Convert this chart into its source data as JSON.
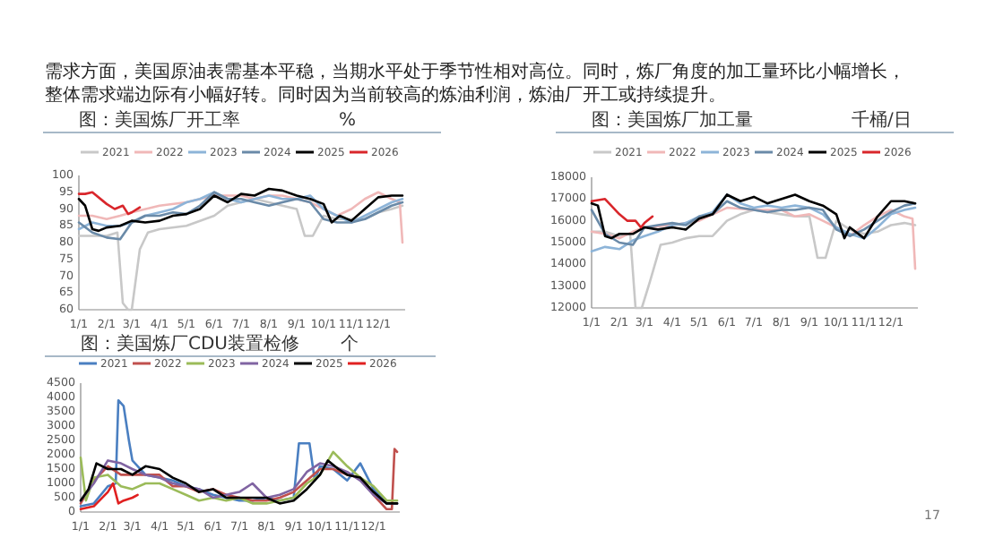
{
  "chart_data": [
    {
      "type": "other",
      "annotations": [
        "需求方面，美国原油表需基本平稳，当期水平处于季节性相对高位。同时，炼厂角度的加工量环比小幅增长，",
        "整体需求端边际有小幅好转。同时因为当前较高的炼油利润，炼油厂开工或持续提升。",
        "17"
      ]
    },
    {
      "type": "line",
      "title": "图：美国炼厂开工率",
      "ylabel": "%",
      "legend": "top",
      "xlim": [
        "--01-01",
        "--12-31"
      ],
      "ylim": [
        60,
        100
      ],
      "yticks": [
        60,
        65,
        70,
        75,
        80,
        85,
        90,
        95,
        100
      ],
      "xticks": [
        {
          "value": "--01-01",
          "label": "1/1"
        },
        {
          "value": "--02-01",
          "label": "2/1"
        },
        {
          "value": "--03-01",
          "label": "3/1"
        },
        {
          "value": "--04-01",
          "label": "4/1"
        },
        {
          "value": "--05-01",
          "label": "5/1"
        },
        {
          "value": "--06-01",
          "label": "6/1"
        },
        {
          "value": "--07-01",
          "label": "7/1"
        },
        {
          "value": "--08-01",
          "label": "8/1"
        },
        {
          "value": "--09-01",
          "label": "9/1"
        },
        {
          "value": "--10-01",
          "label": "10/1"
        },
        {
          "value": "--11-01",
          "label": "11/1"
        },
        {
          "value": "--12-01",
          "label": "12/1"
        }
      ],
      "series": [
        {
          "name": "2021",
          "color": "#c8c8c8",
          "x": [
            "--01-01",
            "--01-16",
            "--02-01",
            "--02-13",
            "--02-19",
            "--02-25",
            "--03-01",
            "--03-10",
            "--03-19",
            "--04-01",
            "--05-01",
            "--06-01",
            "--06-16",
            "--07-01",
            "--07-16",
            "--08-01",
            "--08-16",
            "--09-01",
            "--09-10",
            "--09-19",
            "--10-01",
            "--10-16",
            "--11-01",
            "--11-16",
            "--12-01",
            "--12-16",
            "--12-28"
          ],
          "values": [
            82,
            82,
            82,
            83,
            62,
            60,
            60,
            78,
            83,
            84,
            85,
            88,
            91,
            92,
            93,
            92,
            91,
            90,
            82,
            82,
            88,
            87,
            87,
            87,
            89,
            90,
            91
          ]
        },
        {
          "name": "2022",
          "color": "#f0b8b8",
          "x": [
            "--01-01",
            "--01-16",
            "--02-01",
            "--02-16",
            "--03-01",
            "--04-01",
            "--05-01",
            "--06-01",
            "--07-01",
            "--07-16",
            "--08-01",
            "--08-16",
            "--09-01",
            "--09-16",
            "--10-01",
            "--10-16",
            "--11-01",
            "--11-16",
            "--12-01",
            "--12-16",
            "--12-25",
            "--12-28"
          ],
          "values": [
            88,
            88,
            87,
            88,
            89,
            91,
            92,
            94,
            94,
            93,
            94,
            94,
            93,
            92,
            90,
            88,
            90,
            93,
            95,
            93,
            92,
            80
          ]
        },
        {
          "name": "2023",
          "color": "#8db4d8",
          "x": [
            "--01-01",
            "--01-16",
            "--02-01",
            "--02-16",
            "--03-01",
            "--03-16",
            "--04-01",
            "--04-16",
            "--05-01",
            "--05-16",
            "--06-01",
            "--06-16",
            "--07-01",
            "--07-16",
            "--08-01",
            "--08-16",
            "--09-01",
            "--09-16",
            "--10-01",
            "--10-16",
            "--11-01",
            "--11-16",
            "--12-01",
            "--12-16",
            "--12-28"
          ],
          "values": [
            84,
            86,
            85,
            85,
            86,
            88,
            89,
            90,
            92,
            93,
            95,
            93,
            92,
            93,
            94,
            93,
            93,
            94,
            90,
            88,
            86,
            88,
            90,
            92,
            93
          ]
        },
        {
          "name": "2024",
          "color": "#6a8aa8",
          "x": [
            "--01-01",
            "--01-16",
            "--02-01",
            "--02-16",
            "--03-01",
            "--03-16",
            "--04-01",
            "--04-16",
            "--05-01",
            "--05-16",
            "--06-01",
            "--06-16",
            "--07-01",
            "--07-16",
            "--08-01",
            "--08-16",
            "--09-01",
            "--09-16",
            "--10-01",
            "--10-16",
            "--11-01",
            "--11-16",
            "--12-01",
            "--12-16",
            "--12-28"
          ],
          "values": [
            86,
            83,
            81.5,
            81,
            86,
            88,
            88,
            89,
            88.5,
            91,
            95,
            93,
            93,
            92,
            91,
            92,
            93,
            92,
            87,
            86,
            86,
            87,
            89,
            91,
            92
          ]
        },
        {
          "name": "2025",
          "color": "#000000",
          "x": [
            "--01-01",
            "--01-08",
            "--01-16",
            "--01-23",
            "--02-01",
            "--02-16",
            "--03-01",
            "--03-16",
            "--04-01",
            "--04-16",
            "--05-01",
            "--05-16",
            "--06-01",
            "--06-16",
            "--07-01",
            "--07-16",
            "--08-01",
            "--08-16",
            "--09-01",
            "--09-16",
            "--10-01",
            "--10-10",
            "--10-19",
            "--11-01",
            "--11-16",
            "--12-01",
            "--12-16",
            "--12-28"
          ],
          "values": [
            93,
            91,
            84,
            83.5,
            84.5,
            85,
            86.5,
            86,
            86.5,
            88,
            88.5,
            90,
            94,
            92,
            94.5,
            94,
            96,
            95.5,
            94,
            93,
            91.5,
            86,
            88,
            86.5,
            90,
            93.5,
            94,
            94
          ]
        },
        {
          "name": "2026",
          "color": "#d9262b",
          "x": [
            "--01-01",
            "--01-08",
            "--01-16",
            "--02-01",
            "--02-10",
            "--02-19",
            "--02-25",
            "--03-01",
            "--03-10"
          ],
          "values": [
            94.5,
            94.5,
            95,
            91.5,
            90,
            91,
            88.5,
            89,
            90.5
          ]
        }
      ]
    },
    {
      "type": "line",
      "title": "图：美国炼厂加工量",
      "ylabel": "千桶/日",
      "legend": "top",
      "xlim": [
        "--01-01",
        "--12-31"
      ],
      "ylim": [
        12000,
        18000
      ],
      "yticks": [
        12000,
        13000,
        14000,
        15000,
        16000,
        17000,
        18000
      ],
      "xticks": [
        {
          "value": "--01-01",
          "label": "1/1"
        },
        {
          "value": "--02-01",
          "label": "2/1"
        },
        {
          "value": "--03-01",
          "label": "3/1"
        },
        {
          "value": "--04-01",
          "label": "4/1"
        },
        {
          "value": "--05-01",
          "label": "5/1"
        },
        {
          "value": "--06-01",
          "label": "6/1"
        },
        {
          "value": "--07-01",
          "label": "7/1"
        },
        {
          "value": "--08-01",
          "label": "8/1"
        },
        {
          "value": "--09-01",
          "label": "9/1"
        },
        {
          "value": "--10-01",
          "label": "10/1"
        },
        {
          "value": "--11-01",
          "label": "11/1"
        },
        {
          "value": "--12-01",
          "label": "12/1"
        }
      ],
      "series": [
        {
          "name": "2021",
          "color": "#c8c8c8",
          "x": [
            "--01-01",
            "--01-16",
            "--02-01",
            "--02-13",
            "--02-19",
            "--02-26",
            "--03-07",
            "--03-19",
            "--04-01",
            "--04-16",
            "--05-01",
            "--05-16",
            "--06-01",
            "--06-16",
            "--07-01",
            "--07-16",
            "--08-01",
            "--08-16",
            "--09-01",
            "--09-10",
            "--09-19",
            "--10-01",
            "--10-16",
            "--11-01",
            "--11-16",
            "--12-01",
            "--12-16",
            "--12-28"
          ],
          "values": [
            15500,
            15500,
            15300,
            15400,
            12000,
            12000,
            13200,
            14900,
            15000,
            15200,
            15300,
            15300,
            16000,
            16300,
            16500,
            16400,
            16300,
            16200,
            16200,
            14300,
            14300,
            16000,
            15600,
            15400,
            15500,
            15800,
            15900,
            15800
          ]
        },
        {
          "name": "2022",
          "color": "#f0b8b8",
          "x": [
            "--01-01",
            "--01-16",
            "--02-01",
            "--02-16",
            "--03-01",
            "--04-01",
            "--05-01",
            "--06-01",
            "--07-01",
            "--08-01",
            "--08-16",
            "--09-01",
            "--09-16",
            "--10-01",
            "--10-16",
            "--11-01",
            "--11-16",
            "--12-01",
            "--12-16",
            "--12-25",
            "--12-28"
          ],
          "values": [
            15500,
            15400,
            15200,
            15500,
            15700,
            15800,
            16000,
            16600,
            16500,
            16500,
            16200,
            16300,
            16000,
            15700,
            15300,
            15800,
            16200,
            16500,
            16200,
            16100,
            13800
          ]
        },
        {
          "name": "2023",
          "color": "#8db4d8",
          "x": [
            "--01-01",
            "--01-16",
            "--02-01",
            "--02-16",
            "--03-01",
            "--03-16",
            "--04-01",
            "--04-16",
            "--05-01",
            "--05-16",
            "--06-01",
            "--06-16",
            "--07-01",
            "--07-16",
            "--08-01",
            "--08-16",
            "--09-01",
            "--09-16",
            "--10-01",
            "--10-16",
            "--11-01",
            "--11-16",
            "--12-01",
            "--12-16",
            "--12-28"
          ],
          "values": [
            14600,
            14800,
            14700,
            15100,
            15300,
            15500,
            15800,
            15900,
            16200,
            16400,
            17200,
            16800,
            16600,
            16700,
            16600,
            16700,
            16600,
            16300,
            15700,
            15400,
            15200,
            15700,
            16300,
            16500,
            16600
          ]
        },
        {
          "name": "2024",
          "color": "#6a8aa8",
          "x": [
            "--01-01",
            "--01-16",
            "--02-01",
            "--02-16",
            "--03-01",
            "--03-16",
            "--04-01",
            "--04-16",
            "--05-01",
            "--05-16",
            "--06-01",
            "--06-16",
            "--07-01",
            "--07-16",
            "--08-01",
            "--08-16",
            "--09-01",
            "--09-16",
            "--10-01",
            "--10-16",
            "--11-01",
            "--11-16",
            "--12-01",
            "--12-16",
            "--12-28"
          ],
          "values": [
            16500,
            15400,
            15000,
            14900,
            15700,
            15800,
            15900,
            15800,
            16200,
            16300,
            16900,
            16600,
            16500,
            16400,
            16500,
            16500,
            16600,
            16500,
            15600,
            15300,
            15600,
            16000,
            16400,
            16700,
            16800
          ]
        },
        {
          "name": "2025",
          "color": "#000000",
          "x": [
            "--01-01",
            "--01-08",
            "--01-16",
            "--01-23",
            "--02-01",
            "--02-16",
            "--03-01",
            "--03-16",
            "--04-01",
            "--04-16",
            "--05-01",
            "--05-16",
            "--06-01",
            "--06-16",
            "--07-01",
            "--07-16",
            "--08-01",
            "--08-16",
            "--09-01",
            "--09-16",
            "--10-01",
            "--10-10",
            "--10-16",
            "--11-01",
            "--11-16",
            "--12-01",
            "--12-16",
            "--12-28"
          ],
          "values": [
            16800,
            16700,
            15300,
            15200,
            15400,
            15400,
            15700,
            15600,
            15700,
            15600,
            16100,
            16300,
            17200,
            16900,
            17100,
            16800,
            17000,
            17200,
            16900,
            16700,
            16300,
            15200,
            15700,
            15200,
            16200,
            16900,
            16900,
            16800
          ]
        },
        {
          "name": "2026",
          "color": "#d9262b",
          "x": [
            "--01-01",
            "--01-16",
            "--02-01",
            "--02-10",
            "--02-19",
            "--02-25",
            "--03-01",
            "--03-10"
          ],
          "values": [
            16900,
            17000,
            16300,
            16000,
            16000,
            15700,
            15900,
            16200
          ]
        }
      ]
    },
    {
      "type": "line",
      "title": "图：美国炼厂CDU装置检修",
      "ylabel": "个",
      "legend": "top",
      "xlim": [
        "--01-01",
        "--12-31"
      ],
      "ylim": [
        0,
        4500
      ],
      "yticks": [
        0,
        500,
        1000,
        1500,
        2000,
        2500,
        3000,
        3500,
        4000,
        4500
      ],
      "xticks": [
        {
          "value": "--01-01",
          "label": "1/1"
        },
        {
          "value": "--02-01",
          "label": "2/1"
        },
        {
          "value": "--03-01",
          "label": "3/1"
        },
        {
          "value": "--04-01",
          "label": "4/1"
        },
        {
          "value": "--05-01",
          "label": "5/1"
        },
        {
          "value": "--06-01",
          "label": "6/1"
        },
        {
          "value": "--07-01",
          "label": "7/1"
        },
        {
          "value": "--08-01",
          "label": "8/1"
        },
        {
          "value": "--09-01",
          "label": "9/1"
        },
        {
          "value": "--10-01",
          "label": "10/1"
        },
        {
          "value": "--11-01",
          "label": "11/1"
        },
        {
          "value": "--12-01",
          "label": "12/1"
        }
      ],
      "series": [
        {
          "name": "2021",
          "color": "#4a7fc1",
          "x": [
            "--01-01",
            "--01-16",
            "--02-01",
            "--02-10",
            "--02-13",
            "--02-19",
            "--02-25",
            "--03-01",
            "--03-16",
            "--04-01",
            "--04-16",
            "--05-01",
            "--05-16",
            "--06-01",
            "--06-16",
            "--07-01",
            "--07-16",
            "--08-01",
            "--08-16",
            "--09-01",
            "--09-07",
            "--09-19",
            "--09-25",
            "--10-01",
            "--10-16",
            "--11-01",
            "--11-16",
            "--12-01",
            "--12-16",
            "--12-28"
          ],
          "values": [
            200,
            300,
            900,
            1000,
            3900,
            3700,
            2500,
            1800,
            1300,
            1200,
            1100,
            900,
            800,
            600,
            500,
            400,
            400,
            500,
            400,
            500,
            2400,
            2400,
            1100,
            1600,
            1500,
            1100,
            1700,
            800,
            300,
            300
          ]
        },
        {
          "name": "2022",
          "color": "#c0504d",
          "x": [
            "--01-01",
            "--01-16",
            "--02-01",
            "--02-16",
            "--03-01",
            "--03-16",
            "--04-01",
            "--04-16",
            "--05-01",
            "--05-16",
            "--06-01",
            "--06-16",
            "--07-01",
            "--07-16",
            "--08-01",
            "--08-16",
            "--09-01",
            "--09-16",
            "--10-01",
            "--10-16",
            "--11-01",
            "--11-16",
            "--12-01",
            "--12-16",
            "--12-22",
            "--12-25",
            "--12-28"
          ],
          "values": [
            300,
            1100,
            1600,
            1300,
            1300,
            1300,
            1300,
            900,
            900,
            700,
            800,
            600,
            500,
            400,
            400,
            500,
            700,
            1100,
            1500,
            1500,
            1300,
            1200,
            600,
            100,
            100,
            2200,
            2100
          ]
        },
        {
          "name": "2023",
          "color": "#9bbb59",
          "x": [
            "--01-01",
            "--01-07",
            "--01-16",
            "--02-01",
            "--02-16",
            "--03-01",
            "--03-16",
            "--04-01",
            "--04-16",
            "--05-01",
            "--05-16",
            "--06-01",
            "--06-16",
            "--07-01",
            "--07-16",
            "--08-01",
            "--08-16",
            "--09-01",
            "--09-16",
            "--10-01",
            "--10-16",
            "--11-01",
            "--11-16",
            "--12-01",
            "--12-16",
            "--12-28"
          ],
          "values": [
            1900,
            400,
            1200,
            1300,
            900,
            800,
            1000,
            1000,
            800,
            600,
            400,
            500,
            400,
            500,
            300,
            300,
            400,
            500,
            1000,
            1300,
            2100,
            1600,
            1200,
            900,
            400,
            400
          ]
        },
        {
          "name": "2024",
          "color": "#8064a2",
          "x": [
            "--01-01",
            "--01-16",
            "--02-01",
            "--02-16",
            "--03-01",
            "--03-16",
            "--04-01",
            "--04-16",
            "--05-01",
            "--05-16",
            "--06-01",
            "--06-16",
            "--07-01",
            "--07-16",
            "--08-01",
            "--08-16",
            "--09-01",
            "--09-16",
            "--10-01",
            "--10-16",
            "--11-01",
            "--11-16",
            "--12-01",
            "--12-16",
            "--12-28"
          ],
          "values": [
            400,
            1000,
            1800,
            1700,
            1500,
            1300,
            1200,
            1000,
            900,
            800,
            500,
            600,
            700,
            1000,
            500,
            600,
            800,
            1400,
            1700,
            1600,
            1400,
            1100,
            600,
            300,
            300
          ]
        },
        {
          "name": "2025",
          "color": "#000000",
          "x": [
            "--01-01",
            "--01-10",
            "--01-19",
            "--02-01",
            "--02-16",
            "--03-01",
            "--03-16",
            "--04-01",
            "--04-16",
            "--05-01",
            "--05-16",
            "--06-01",
            "--06-16",
            "--07-01",
            "--07-16",
            "--08-01",
            "--08-16",
            "--09-01",
            "--09-16",
            "--10-01",
            "--10-10",
            "--10-22",
            "--11-01",
            "--11-16",
            "--12-01",
            "--12-16",
            "--12-28"
          ],
          "values": [
            400,
            800,
            1700,
            1500,
            1500,
            1300,
            1600,
            1500,
            1200,
            1000,
            700,
            800,
            500,
            500,
            500,
            500,
            300,
            400,
            800,
            1300,
            1800,
            1500,
            1300,
            1200,
            700,
            300,
            300
          ]
        },
        {
          "name": "2026",
          "color": "#e02020",
          "x": [
            "--01-01",
            "--01-16",
            "--02-01",
            "--02-07",
            "--02-13",
            "--02-19",
            "--03-01",
            "--03-07"
          ],
          "values": [
            100,
            200,
            700,
            1000,
            300,
            400,
            500,
            600
          ]
        }
      ]
    }
  ]
}
